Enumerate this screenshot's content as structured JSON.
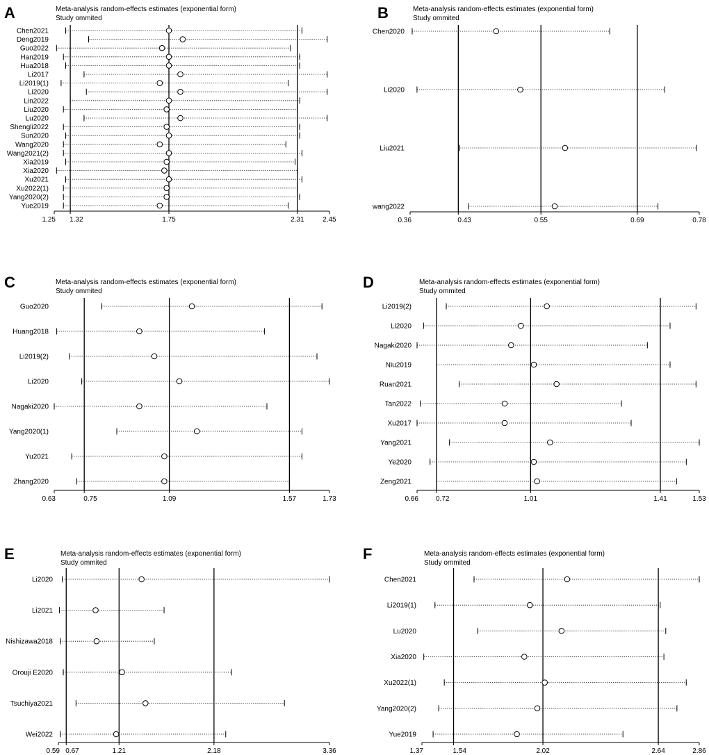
{
  "figure": {
    "panel_title": "Meta-analysis random-effects estimates (exponential form)",
    "panel_subtitle": "Study ommited"
  },
  "chart_data": [
    {
      "panel": "A",
      "type": "forest",
      "title": "Meta-analysis random-effects estimates (exponential form)",
      "subtitle": "Study ommited",
      "xlim": [
        1.25,
        2.45
      ],
      "ticks": [
        {
          "v": 1.25,
          "label": "1.25"
        },
        {
          "v": 1.32,
          "label": "1.32"
        },
        {
          "v": 1.75,
          "label": "1.75"
        },
        {
          "v": 2.31,
          "label": "2.31"
        },
        {
          "v": 2.45,
          "label": "2.45"
        }
      ],
      "ref_lines": [
        1.32,
        1.75,
        2.31
      ],
      "studies": [
        {
          "label": "Chen2021",
          "est": 1.75,
          "lo": 1.3,
          "hi": 2.33
        },
        {
          "label": "Deng2019",
          "est": 1.81,
          "lo": 1.4,
          "hi": 2.44
        },
        {
          "label": "Guo2022",
          "est": 1.72,
          "lo": 1.26,
          "hi": 2.28
        },
        {
          "label": "Han2019",
          "est": 1.75,
          "lo": 1.29,
          "hi": 2.32
        },
        {
          "label": "Hua2018",
          "est": 1.75,
          "lo": 1.3,
          "hi": 2.32
        },
        {
          "label": "Li2017",
          "est": 1.8,
          "lo": 1.38,
          "hi": 2.44
        },
        {
          "label": "Li2019(1)",
          "est": 1.71,
          "lo": 1.28,
          "hi": 2.27
        },
        {
          "label": "Li2020",
          "est": 1.8,
          "lo": 1.39,
          "hi": 2.44
        },
        {
          "label": "Lin2022",
          "est": 1.75,
          "lo": 1.32,
          "hi": 2.32
        },
        {
          "label": "Liu2020",
          "est": 1.74,
          "lo": 1.29,
          "hi": 2.31
        },
        {
          "label": "Lu2020",
          "est": 1.8,
          "lo": 1.38,
          "hi": 2.44
        },
        {
          "label": "Shengli2022",
          "est": 1.74,
          "lo": 1.29,
          "hi": 2.32
        },
        {
          "label": "Sun2020",
          "est": 1.75,
          "lo": 1.3,
          "hi": 2.32
        },
        {
          "label": "Wang2020",
          "est": 1.71,
          "lo": 1.29,
          "hi": 2.26
        },
        {
          "label": "Wang2021(2)",
          "est": 1.75,
          "lo": 1.29,
          "hi": 2.33
        },
        {
          "label": "Xia2019",
          "est": 1.74,
          "lo": 1.3,
          "hi": 2.3
        },
        {
          "label": "Xia2020",
          "est": 1.73,
          "lo": 1.26,
          "hi": 2.31
        },
        {
          "label": "Xu2021",
          "est": 1.75,
          "lo": 1.3,
          "hi": 2.33
        },
        {
          "label": "Xu2022(1)",
          "est": 1.74,
          "lo": 1.29,
          "hi": 2.31
        },
        {
          "label": "Yang2020(2)",
          "est": 1.74,
          "lo": 1.29,
          "hi": 2.32
        },
        {
          "label": "Yue2019",
          "est": 1.71,
          "lo": 1.29,
          "hi": 2.27
        }
      ]
    },
    {
      "panel": "B",
      "type": "forest",
      "title": "Meta-analysis random-effects estimates (exponential form)",
      "subtitle": "Study ommited",
      "xlim": [
        0.36,
        0.78
      ],
      "ticks": [
        {
          "v": 0.36,
          "label": "0.36"
        },
        {
          "v": 0.43,
          "label": "0.43"
        },
        {
          "v": 0.55,
          "label": "0.55"
        },
        {
          "v": 0.69,
          "label": "0.69"
        },
        {
          "v": 0.78,
          "label": "0.78"
        }
      ],
      "ref_lines": [
        0.43,
        0.55,
        0.69
      ],
      "studies": [
        {
          "label": "Chen2020",
          "est": 0.485,
          "lo": 0.363,
          "hi": 0.65
        },
        {
          "label": "Li2020",
          "est": 0.52,
          "lo": 0.37,
          "hi": 0.73
        },
        {
          "label": "Liu2021",
          "est": 0.585,
          "lo": 0.432,
          "hi": 0.776
        },
        {
          "label": "wang2022",
          "est": 0.57,
          "lo": 0.445,
          "hi": 0.72
        }
      ]
    },
    {
      "panel": "C",
      "type": "forest",
      "title": "Meta-analysis random-effects estimates (exponential form)",
      "subtitle": "Study ommited",
      "xlim": [
        0.63,
        1.73
      ],
      "ticks": [
        {
          "v": 0.63,
          "label": "0.63"
        },
        {
          "v": 0.75,
          "label": "0.75"
        },
        {
          "v": 1.09,
          "label": "1.09"
        },
        {
          "v": 1.57,
          "label": "1.57"
        },
        {
          "v": 1.73,
          "label": "1.73"
        }
      ],
      "ref_lines": [
        0.75,
        1.09,
        1.57
      ],
      "studies": [
        {
          "label": "Guo2020",
          "est": 1.18,
          "lo": 0.82,
          "hi": 1.7
        },
        {
          "label": "Huang2018",
          "est": 0.97,
          "lo": 0.64,
          "hi": 1.47
        },
        {
          "label": "Li2019(2)",
          "est": 1.03,
          "lo": 0.69,
          "hi": 1.68
        },
        {
          "label": "Li2020",
          "est": 1.13,
          "lo": 0.74,
          "hi": 1.73
        },
        {
          "label": "Nagaki2020",
          "est": 0.97,
          "lo": 0.63,
          "hi": 1.48
        },
        {
          "label": "Yang2020(1)",
          "est": 1.2,
          "lo": 0.88,
          "hi": 1.62
        },
        {
          "label": "Yu2021",
          "est": 1.07,
          "lo": 0.7,
          "hi": 1.62
        },
        {
          "label": "Zhang2020",
          "est": 1.07,
          "lo": 0.72,
          "hi": 1.57
        }
      ]
    },
    {
      "panel": "D",
      "type": "forest",
      "title": "Meta-analysis random-effects estimates (exponential form)",
      "subtitle": "Study ommited",
      "xlim": [
        0.66,
        1.53
      ],
      "ticks": [
        {
          "v": 0.66,
          "label": "0.66"
        },
        {
          "v": 0.72,
          "label": "0.72"
        },
        {
          "v": 1.01,
          "label": "1.01"
        },
        {
          "v": 1.41,
          "label": "1.41"
        },
        {
          "v": 1.53,
          "label": "1.53"
        }
      ],
      "ref_lines": [
        0.72,
        1.01,
        1.41
      ],
      "studies": [
        {
          "label": "Li2019(2)",
          "est": 1.06,
          "lo": 0.75,
          "hi": 1.52
        },
        {
          "label": "Li2020",
          "est": 0.98,
          "lo": 0.68,
          "hi": 1.44
        },
        {
          "label": "Nagaki2020",
          "est": 0.95,
          "lo": 0.66,
          "hi": 1.37
        },
        {
          "label": "Niu2019",
          "est": 1.02,
          "lo": 0.72,
          "hi": 1.44
        },
        {
          "label": "Ruan2021",
          "est": 1.09,
          "lo": 0.79,
          "hi": 1.52
        },
        {
          "label": "Tan2022",
          "est": 0.93,
          "lo": 0.67,
          "hi": 1.29
        },
        {
          "label": "Xu2017",
          "est": 0.93,
          "lo": 0.66,
          "hi": 1.32
        },
        {
          "label": "Yang2021",
          "est": 1.07,
          "lo": 0.76,
          "hi": 1.53
        },
        {
          "label": "Ye2020",
          "est": 1.02,
          "lo": 0.7,
          "hi": 1.49
        },
        {
          "label": "Zeng2021",
          "est": 1.03,
          "lo": 0.72,
          "hi": 1.46
        }
      ]
    },
    {
      "panel": "E",
      "type": "forest",
      "title": "Meta-analysis random-effects estimates (exponential form)",
      "subtitle": "Study ommited",
      "xlim": [
        0.59,
        3.36
      ],
      "ticks": [
        {
          "v": 0.59,
          "label": "0.59"
        },
        {
          "v": 0.67,
          "label": "0.67"
        },
        {
          "v": 1.21,
          "label": "1.21"
        },
        {
          "v": 2.18,
          "label": "2.18"
        },
        {
          "v": 3.36,
          "label": "3.36"
        }
      ],
      "ref_lines": [
        0.67,
        1.21,
        2.18
      ],
      "studies": [
        {
          "label": "Li2020",
          "est": 1.44,
          "lo": 0.63,
          "hi": 3.36
        },
        {
          "label": "Li2021",
          "est": 0.97,
          "lo": 0.6,
          "hi": 1.67
        },
        {
          "label": "Nishizawa2018",
          "est": 0.98,
          "lo": 0.61,
          "hi": 1.57
        },
        {
          "label": "Orouji E2020",
          "est": 1.24,
          "lo": 0.64,
          "hi": 2.36
        },
        {
          "label": "Tsuchiya2021",
          "est": 1.48,
          "lo": 0.77,
          "hi": 2.9
        },
        {
          "label": "Wei2022",
          "est": 1.18,
          "lo": 0.61,
          "hi": 2.3
        }
      ]
    },
    {
      "panel": "F",
      "type": "forest",
      "title": "Meta-analysis random-effects estimates (exponential form)",
      "subtitle": "Study ommited",
      "xlim": [
        1.37,
        2.86
      ],
      "ticks": [
        {
          "v": 1.37,
          "label": "1.37"
        },
        {
          "v": 1.54,
          "label": "1.54"
        },
        {
          "v": 2.02,
          "label": "2.02"
        },
        {
          "v": 2.64,
          "label": "2.64"
        },
        {
          "v": 2.86,
          "label": "2.86"
        }
      ],
      "ref_lines": [
        1.54,
        2.02,
        2.64
      ],
      "studies": [
        {
          "label": "Chen2021",
          "est": 2.15,
          "lo": 1.65,
          "hi": 2.86
        },
        {
          "label": "Li2019(1)",
          "est": 1.95,
          "lo": 1.44,
          "hi": 2.65
        },
        {
          "label": "Lu2020",
          "est": 2.12,
          "lo": 1.67,
          "hi": 2.68
        },
        {
          "label": "Xia2020",
          "est": 1.92,
          "lo": 1.38,
          "hi": 2.67
        },
        {
          "label": "Xu2022(1)",
          "est": 2.03,
          "lo": 1.49,
          "hi": 2.79
        },
        {
          "label": "Yang2020(2)",
          "est": 1.99,
          "lo": 1.46,
          "hi": 2.74
        },
        {
          "label": "Yue2019",
          "est": 1.88,
          "lo": 1.43,
          "hi": 2.45
        }
      ]
    }
  ]
}
